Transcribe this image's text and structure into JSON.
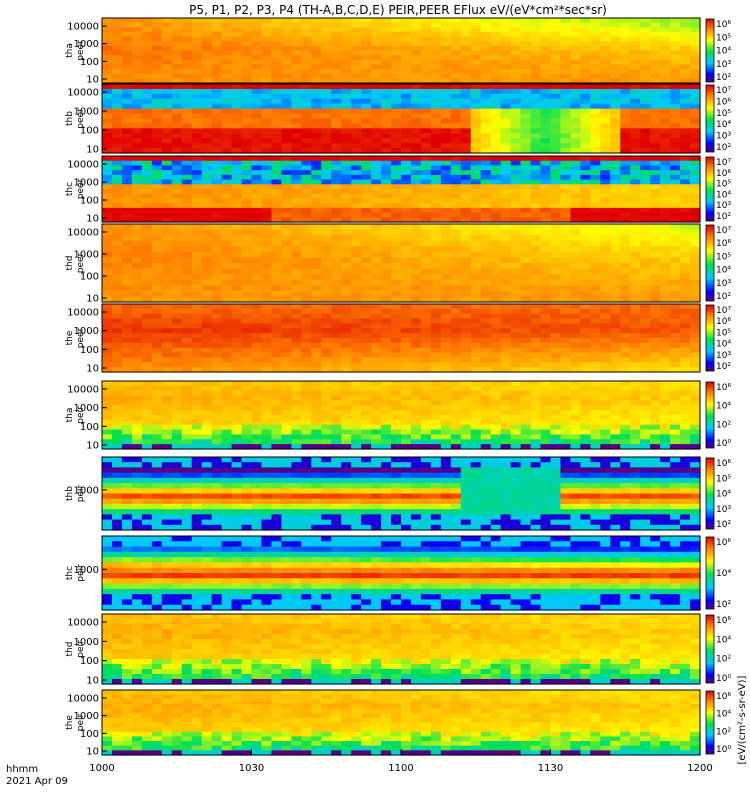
{
  "chart_data": {
    "type": "heatmap",
    "title": "P5, P1, P2, P3, P4 (TH-A,B,C,D,E) PEIR,PEER EFlux eV/(eV*cm²*sec*sr)",
    "x_axis": {
      "tick_labels": [
        "1000",
        "1030",
        "1100",
        "1130",
        "1200"
      ],
      "corner_label_1": "hhmm",
      "corner_label_2": "2021 Apr 09"
    },
    "colorbar_label": "[eV/(cm²-s-sr-eV)]",
    "panels": [
      {
        "probe": "tha",
        "species": "peer",
        "yticks": [
          "10",
          "100",
          "1000",
          "10000"
        ],
        "cb_ticks": [
          "10²",
          "10³",
          "10⁴",
          "10⁵",
          "10⁶"
        ],
        "pattern": "electron_a"
      },
      {
        "probe": "thb",
        "species": "peer",
        "yticks": [
          "10",
          "100",
          "1000",
          "10000"
        ],
        "cb_ticks": [
          "10²",
          "10³",
          "10⁴",
          "10⁵",
          "10⁶",
          "10⁷"
        ],
        "pattern": "electron_b"
      },
      {
        "probe": "thc",
        "species": "peer",
        "yticks": [
          "10",
          "100",
          "1000",
          "10000"
        ],
        "cb_ticks": [
          "10²",
          "10³",
          "10⁴",
          "10⁵",
          "10⁶",
          "10⁷"
        ],
        "pattern": "electron_c"
      },
      {
        "probe": "thd",
        "species": "peer",
        "yticks": [
          "10",
          "100",
          "1000",
          "10000"
        ],
        "cb_ticks": [
          "10²",
          "10³",
          "10⁴",
          "10⁵",
          "10⁶",
          "10⁷"
        ],
        "pattern": "electron_d"
      },
      {
        "probe": "the",
        "species": "peer",
        "yticks": [
          "10",
          "100",
          "1000",
          "10000"
        ],
        "cb_ticks": [
          "10²",
          "10³",
          "10⁴",
          "10⁵",
          "10⁶",
          "10⁷"
        ],
        "pattern": "electron_e"
      },
      {
        "probe": "tha",
        "species": "peir",
        "yticks": [
          "10",
          "100",
          "1000",
          "10000"
        ],
        "cb_ticks": [
          "10⁰",
          "10²",
          "10⁴",
          "10⁶"
        ],
        "pattern": "ion_a"
      },
      {
        "probe": "thb",
        "species": "peir",
        "yticks": [
          "1000"
        ],
        "cb_ticks": [
          "10²",
          "10³",
          "10⁴",
          "10⁵",
          "10⁶"
        ],
        "pattern": "ion_b"
      },
      {
        "probe": "thc",
        "species": "peir",
        "yticks": [
          "1000"
        ],
        "cb_ticks": [
          "10²",
          "10⁴",
          "10⁶"
        ],
        "pattern": "ion_c"
      },
      {
        "probe": "thd",
        "species": "peir",
        "yticks": [
          "10",
          "100",
          "1000",
          "10000"
        ],
        "cb_ticks": [
          "10⁰",
          "10²",
          "10⁴",
          "10⁶"
        ],
        "pattern": "ion_d"
      },
      {
        "probe": "the",
        "species": "peir",
        "yticks": [
          "10",
          "100",
          "1000",
          "10000"
        ],
        "cb_ticks": [
          "10⁰",
          "10²",
          "10⁴",
          "10⁶"
        ],
        "pattern": "ion_e"
      }
    ]
  }
}
